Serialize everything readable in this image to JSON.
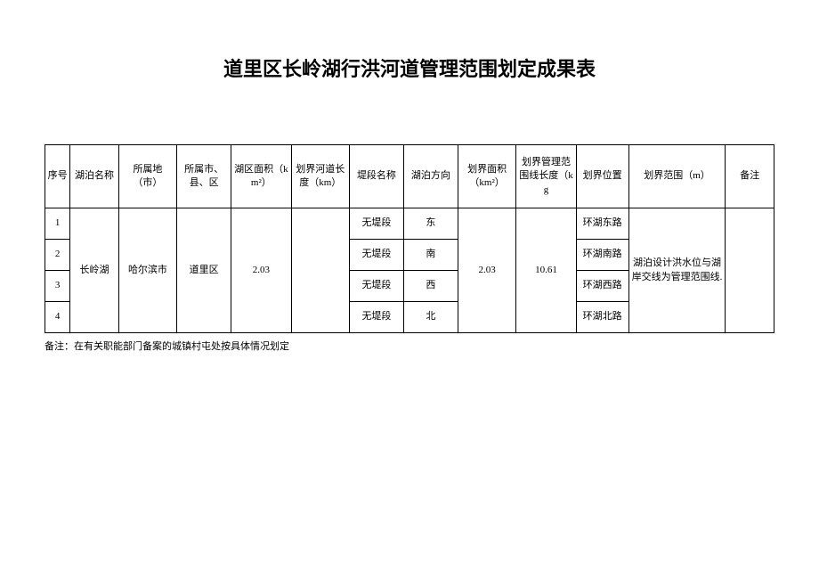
{
  "title": "道里区长岭湖行洪河道管理范围划定成果表",
  "columns": {
    "seq": "序号",
    "lake_name": "湖泊名称",
    "city": "所属地（市）",
    "county": "所属市、县、区",
    "lake_area": "湖区面积（km²）",
    "river_len": "划界河道长度（km）",
    "seg_name": "堤段名称",
    "direction": "湖泊方向",
    "boundary_area": "划界面积（km²）",
    "boundary_len": "划界管理范围线长度（kg",
    "position": "划界位置",
    "range": "划界范围（m）",
    "note": "备注"
  },
  "merged": {
    "lake_name": "长岭湖",
    "city": "哈尔滨市",
    "county": "道里区",
    "lake_area": "2.03",
    "river_len": "",
    "boundary_area": "2.03",
    "boundary_len": "10.61",
    "range": "湖泊设计洪水位与湖岸交线为管理范围线.",
    "note": ""
  },
  "rows": [
    {
      "seq": "1",
      "seg_name": "无堤段",
      "direction": "东",
      "position": "环湖东路"
    },
    {
      "seq": "2",
      "seg_name": "无堤段",
      "direction": "南",
      "position": "环湖南路"
    },
    {
      "seq": "3",
      "seg_name": "无堤段",
      "direction": "西",
      "position": "环湖西路"
    },
    {
      "seq": "4",
      "seg_name": "无堤段",
      "direction": "北",
      "position": "环湖北路"
    }
  ],
  "footer": "备注：在有关职能部门备案的城镇村屯处按具体情况划定"
}
